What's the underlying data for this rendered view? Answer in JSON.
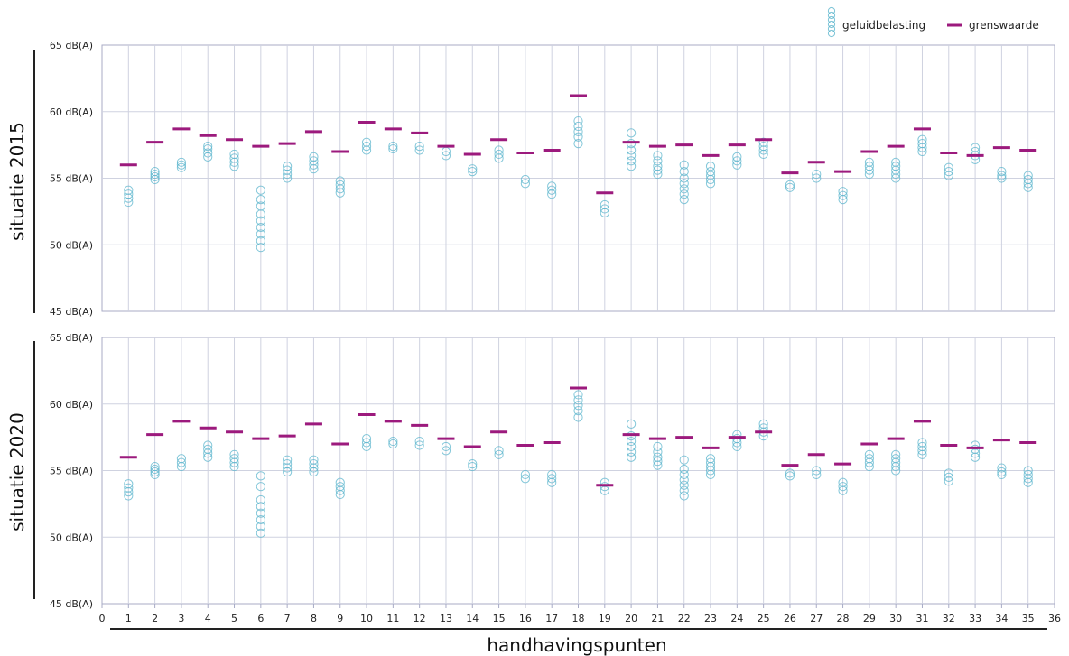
{
  "chart_data": {
    "type": "scatter",
    "xlabel": "handhavingspunten",
    "xlim": [
      0,
      36
    ],
    "x_ticks": [
      0,
      1,
      2,
      3,
      4,
      5,
      6,
      7,
      8,
      9,
      10,
      11,
      12,
      13,
      14,
      15,
      16,
      17,
      18,
      19,
      20,
      21,
      22,
      23,
      24,
      25,
      26,
      27,
      28,
      29,
      30,
      31,
      32,
      33,
      34,
      35,
      36
    ],
    "legend": {
      "position": "top-right",
      "items": [
        {
          "name": "geluidbelasting",
          "marker": "circles"
        },
        {
          "name": "grenswaarde",
          "marker": "dash"
        }
      ]
    },
    "colors": {
      "geluidbelasting": "#5ab4cc",
      "grenswaarde": "#9c1a7d",
      "grid": "#cfd2e0",
      "axis": "#a8abc6"
    },
    "panels": [
      {
        "ylabel": "situatie 2015",
        "ylim": [
          45,
          65
        ],
        "y_ticks": [
          "45 dB(A)",
          "50 dB(A)",
          "55 dB(A)",
          "60 dB(A)",
          "65 dB(A)"
        ],
        "grenswaarde": [
          56.0,
          57.7,
          58.7,
          58.2,
          57.9,
          57.4,
          57.6,
          58.5,
          57.0,
          59.2,
          58.7,
          58.4,
          57.4,
          56.8,
          57.9,
          56.9,
          57.1,
          61.2,
          53.9,
          57.7,
          57.4,
          57.5,
          56.7,
          57.5,
          57.9,
          55.4,
          56.2,
          55.5,
          57.0,
          57.4,
          58.7,
          56.9,
          56.7,
          57.3,
          57.1
        ],
        "geluidbelasting": [
          [
            53.2,
            53.5,
            53.8,
            54.1
          ],
          [
            54.9,
            55.1,
            55.3,
            55.5
          ],
          [
            55.8,
            56.0,
            56.2
          ],
          [
            56.6,
            56.9,
            57.2,
            57.4
          ],
          [
            55.9,
            56.2,
            56.5,
            56.8
          ],
          [
            49.8,
            50.3,
            50.8,
            51.3,
            51.8,
            52.3,
            52.9,
            53.4,
            54.1
          ],
          [
            55.0,
            55.3,
            55.6,
            55.9
          ],
          [
            55.7,
            56.0,
            56.3,
            56.6
          ],
          [
            53.9,
            54.2,
            54.5,
            54.8
          ],
          [
            57.1,
            57.4,
            57.7
          ],
          [
            57.2,
            57.4
          ],
          [
            57.1,
            57.4
          ],
          [
            56.7,
            57.0
          ],
          [
            55.5,
            55.7
          ],
          [
            56.5,
            56.8,
            57.1
          ],
          [
            54.6,
            54.9
          ],
          [
            53.8,
            54.1,
            54.4
          ],
          [
            57.6,
            58.1,
            58.5,
            58.9,
            59.3
          ],
          [
            52.4,
            52.7,
            53.0
          ],
          [
            55.9,
            56.3,
            56.7,
            57.1,
            57.6,
            58.4
          ],
          [
            55.3,
            55.6,
            55.9,
            56.3,
            56.7
          ],
          [
            53.4,
            53.8,
            54.2,
            54.6,
            55.0,
            55.5,
            56.0
          ],
          [
            54.6,
            54.9,
            55.2,
            55.5,
            55.9
          ],
          [
            56.0,
            56.3,
            56.6
          ],
          [
            56.8,
            57.1,
            57.4,
            57.7
          ],
          [
            54.3,
            54.5
          ],
          [
            55.0,
            55.3
          ],
          [
            53.4,
            53.7,
            54.0
          ],
          [
            55.3,
            55.6,
            55.9,
            56.2
          ],
          [
            55.0,
            55.3,
            55.6,
            55.9,
            56.2
          ],
          [
            57.0,
            57.3,
            57.6,
            57.9
          ],
          [
            55.2,
            55.5,
            55.8
          ],
          [
            56.4,
            56.7,
            57.0,
            57.3
          ],
          [
            55.0,
            55.2,
            55.5
          ],
          [
            54.3,
            54.6,
            54.9,
            55.2
          ]
        ]
      },
      {
        "ylabel": "situatie 2020",
        "ylim": [
          45,
          65
        ],
        "y_ticks": [
          "45 dB(A)",
          "50 dB(A)",
          "55 dB(A)",
          "60 dB(A)",
          "65 dB(A)"
        ],
        "grenswaarde": [
          56.0,
          57.7,
          58.7,
          58.2,
          57.9,
          57.4,
          57.6,
          58.5,
          57.0,
          59.2,
          58.7,
          58.4,
          57.4,
          56.8,
          57.9,
          56.9,
          57.1,
          61.2,
          53.9,
          57.7,
          57.4,
          57.5,
          56.7,
          57.5,
          57.9,
          55.4,
          56.2,
          55.5,
          57.0,
          57.4,
          58.7,
          56.9,
          56.7,
          57.3,
          57.1
        ],
        "geluidbelasting": [
          [
            53.1,
            53.4,
            53.7,
            54.0
          ],
          [
            54.7,
            54.9,
            55.1,
            55.3
          ],
          [
            55.3,
            55.6,
            55.9
          ],
          [
            56.0,
            56.3,
            56.6,
            56.9
          ],
          [
            55.3,
            55.6,
            55.9,
            56.2
          ],
          [
            50.3,
            50.8,
            51.3,
            51.8,
            52.3,
            52.8,
            53.8,
            54.6
          ],
          [
            54.9,
            55.2,
            55.5,
            55.8
          ],
          [
            54.9,
            55.2,
            55.5,
            55.8
          ],
          [
            53.2,
            53.5,
            53.8,
            54.1
          ],
          [
            56.8,
            57.1,
            57.4
          ],
          [
            57.0,
            57.2
          ],
          [
            56.9,
            57.2
          ],
          [
            56.5,
            56.8
          ],
          [
            55.3,
            55.5
          ],
          [
            56.2,
            56.5
          ],
          [
            54.4,
            54.7
          ],
          [
            54.1,
            54.4,
            54.7
          ],
          [
            59.0,
            59.5,
            59.9,
            60.3,
            60.7
          ],
          [
            53.5,
            53.8,
            54.1
          ],
          [
            56.0,
            56.4,
            56.8,
            57.2,
            57.6,
            58.5
          ],
          [
            55.4,
            55.7,
            56.0,
            56.4,
            56.8
          ],
          [
            53.1,
            53.5,
            53.9,
            54.3,
            54.7,
            55.1,
            55.8
          ],
          [
            54.7,
            55.0,
            55.3,
            55.6,
            55.9
          ],
          [
            56.8,
            57.1,
            57.4,
            57.7
          ],
          [
            57.6,
            57.9,
            58.2,
            58.5
          ],
          [
            54.6,
            54.8
          ],
          [
            54.7,
            55.0
          ],
          [
            53.5,
            53.8,
            54.1
          ],
          [
            55.3,
            55.6,
            55.9,
            56.2
          ],
          [
            55.0,
            55.3,
            55.6,
            55.9,
            56.2
          ],
          [
            56.2,
            56.5,
            56.8,
            57.1
          ],
          [
            54.2,
            54.5,
            54.8
          ],
          [
            56.0,
            56.3,
            56.6,
            56.9
          ],
          [
            54.7,
            54.9,
            55.2
          ],
          [
            54.1,
            54.4,
            54.7,
            55.0
          ]
        ]
      }
    ]
  }
}
